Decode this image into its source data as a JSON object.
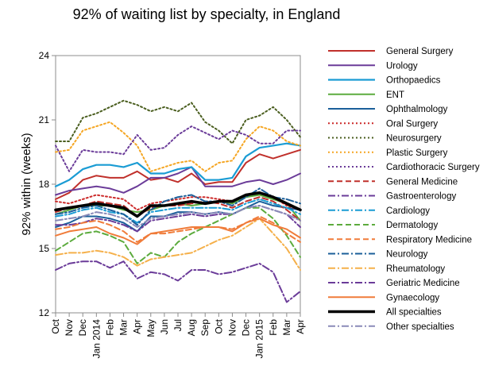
{
  "chart_data": {
    "type": "line",
    "title": "92% of waiting list by specialty, in England",
    "xlabel": "",
    "ylabel": "92% within (weeks)",
    "ylim": [
      12,
      24
    ],
    "yticks": [
      12,
      15,
      18,
      21,
      24
    ],
    "grid": false,
    "legend_position": "right",
    "categories": [
      "Oct",
      "Nov",
      "Dec",
      "Jan 2014",
      "Feb",
      "Mar",
      "Apr",
      "May",
      "Jun",
      "Jul",
      "Aug",
      "Sep",
      "Oct",
      "Nov",
      "Dec",
      "Jan 2015",
      "Feb",
      "Mar",
      "Apr"
    ],
    "series": [
      {
        "name": "General Surgery",
        "color": "#c0302b",
        "dash": "solid",
        "width": 2,
        "values": [
          17.3,
          17.6,
          18.2,
          18.4,
          18.3,
          18.3,
          18.6,
          18.2,
          18.3,
          18.1,
          18.5,
          18.0,
          18.1,
          18.1,
          19.0,
          19.4,
          19.2,
          19.4,
          19.6
        ]
      },
      {
        "name": "Urology",
        "color": "#6b3c99",
        "dash": "solid",
        "width": 2,
        "values": [
          17.5,
          17.7,
          17.8,
          17.9,
          17.8,
          17.6,
          17.9,
          18.3,
          18.3,
          18.5,
          18.8,
          17.9,
          17.9,
          17.9,
          18.1,
          18.2,
          18.0,
          18.2,
          18.5
        ]
      },
      {
        "name": "Orthopaedics",
        "color": "#1a9cd4",
        "dash": "solid",
        "width": 2.2,
        "values": [
          17.9,
          18.2,
          18.7,
          18.9,
          18.9,
          18.8,
          19.0,
          18.5,
          18.5,
          18.7,
          18.8,
          18.2,
          18.2,
          18.3,
          19.3,
          19.7,
          19.8,
          19.9,
          19.8
        ]
      },
      {
        "name": "ENT",
        "color": "#5cab3d",
        "dash": "solid",
        "width": 2,
        "values": [
          16.6,
          16.8,
          17.0,
          17.0,
          17.0,
          16.8,
          16.7,
          16.8,
          17.0,
          17.1,
          17.0,
          17.1,
          17.2,
          17.1,
          17.4,
          17.5,
          17.3,
          17.1,
          16.3
        ]
      },
      {
        "name": "Ophthalmology",
        "color": "#1b5f9a",
        "dash": "solid",
        "width": 2,
        "values": [
          16.0,
          16.2,
          16.5,
          16.5,
          16.4,
          16.2,
          15.8,
          16.5,
          16.5,
          16.7,
          16.7,
          16.6,
          16.7,
          16.6,
          16.9,
          17.2,
          17.0,
          16.9,
          16.8
        ]
      },
      {
        "name": "Oral Surgery",
        "color": "#cc2a2a",
        "dash": "dot",
        "width": 2,
        "values": [
          17.2,
          17.1,
          17.3,
          17.5,
          17.4,
          17.3,
          16.8,
          17.1,
          17.2,
          17.3,
          17.4,
          17.4,
          17.3,
          17.2,
          17.5,
          17.6,
          17.4,
          17.0,
          16.8
        ]
      },
      {
        "name": "Neurosurgery",
        "color": "#4a5e1f",
        "dash": "dot",
        "width": 2,
        "values": [
          20.0,
          20.0,
          21.1,
          21.3,
          21.6,
          21.9,
          21.7,
          21.4,
          21.6,
          21.4,
          21.8,
          20.9,
          20.5,
          19.9,
          21.0,
          21.2,
          21.6,
          21.0,
          20.2
        ]
      },
      {
        "name": "Plastic Surgery",
        "color": "#f5a623",
        "dash": "dot",
        "width": 2,
        "values": [
          19.5,
          19.6,
          20.5,
          20.7,
          20.9,
          20.4,
          19.8,
          18.6,
          18.8,
          19.0,
          19.1,
          18.6,
          19.0,
          19.1,
          20.1,
          20.7,
          20.5,
          20.0,
          19.8
        ]
      },
      {
        "name": "Cardiothoracic Surgery",
        "color": "#6b3c99",
        "dash": "dot",
        "width": 2,
        "values": [
          19.8,
          18.6,
          19.6,
          19.5,
          19.5,
          19.4,
          20.3,
          19.6,
          19.7,
          20.3,
          20.7,
          20.4,
          20.1,
          20.5,
          20.3,
          19.9,
          19.9,
          20.5,
          20.5
        ]
      },
      {
        "name": "General Medicine",
        "color": "#c0302b",
        "dash": "dash",
        "width": 2,
        "values": [
          16.7,
          16.9,
          17.0,
          17.2,
          17.1,
          17.0,
          16.5,
          16.9,
          17.0,
          17.0,
          17.1,
          17.2,
          17.1,
          16.9,
          17.2,
          17.4,
          17.2,
          16.8,
          16.3
        ]
      },
      {
        "name": "Gastroenterology",
        "color": "#6b3c99",
        "dash": "dashdot",
        "width": 2,
        "values": [
          16.1,
          16.1,
          16.2,
          16.4,
          16.3,
          16.1,
          15.8,
          16.3,
          16.4,
          16.5,
          16.6,
          16.5,
          16.6,
          16.6,
          16.9,
          17.0,
          16.8,
          16.6,
          16.0
        ]
      },
      {
        "name": "Cardiology",
        "color": "#1a9cd4",
        "dash": "dashdot",
        "width": 2,
        "values": [
          16.5,
          16.6,
          16.8,
          16.9,
          16.7,
          16.6,
          16.2,
          16.7,
          16.8,
          16.9,
          16.9,
          16.9,
          16.9,
          16.8,
          17.1,
          17.3,
          17.1,
          16.9,
          16.6
        ]
      },
      {
        "name": "Dermatology",
        "color": "#5cab3d",
        "dash": "dash",
        "width": 2,
        "values": [
          14.9,
          15.3,
          15.7,
          15.8,
          15.6,
          15.3,
          14.3,
          14.8,
          14.6,
          15.3,
          15.7,
          16.0,
          16.3,
          16.6,
          16.9,
          16.9,
          16.4,
          15.6,
          14.6
        ]
      },
      {
        "name": "Respiratory Medicine",
        "color": "#f07c3a",
        "dash": "dash",
        "width": 2,
        "values": [
          15.9,
          16.0,
          16.2,
          16.3,
          16.1,
          15.8,
          15.3,
          15.7,
          15.7,
          15.8,
          15.9,
          16.0,
          16.0,
          15.9,
          16.2,
          16.5,
          16.2,
          15.7,
          15.3
        ]
      },
      {
        "name": "Neurology",
        "color": "#1b5f9a",
        "dash": "dashdot",
        "width": 2,
        "values": [
          16.6,
          16.7,
          16.9,
          17.0,
          16.8,
          16.6,
          16.1,
          16.8,
          17.2,
          17.4,
          17.5,
          17.2,
          17.2,
          17.0,
          17.4,
          17.8,
          17.4,
          17.3,
          17.1
        ]
      },
      {
        "name": "Rheumatology",
        "color": "#f5b04a",
        "dash": "dashdot",
        "width": 2,
        "values": [
          14.7,
          14.8,
          14.8,
          14.9,
          14.8,
          14.6,
          14.2,
          14.5,
          14.6,
          14.7,
          14.8,
          15.1,
          15.4,
          15.6,
          16.0,
          16.4,
          15.7,
          15.0,
          14.0
        ]
      },
      {
        "name": "Geriatric Medicine",
        "color": "#6b3c99",
        "dash": "dashdot",
        "width": 2,
        "values": [
          14.0,
          14.3,
          14.4,
          14.4,
          14.1,
          14.4,
          13.6,
          13.9,
          13.8,
          13.5,
          14.0,
          14.0,
          13.8,
          13.9,
          14.1,
          14.3,
          13.9,
          12.5,
          13.0
        ]
      },
      {
        "name": "Gynaecology",
        "color": "#f07c3a",
        "dash": "solid",
        "width": 2,
        "values": [
          15.6,
          15.8,
          15.9,
          16.0,
          15.7,
          15.5,
          15.2,
          15.7,
          15.8,
          15.9,
          16.0,
          16.0,
          16.0,
          15.8,
          16.2,
          16.4,
          16.1,
          15.9,
          15.5
        ]
      },
      {
        "name": "All specialties",
        "color": "#000000",
        "dash": "solid",
        "width": 3.6,
        "values": [
          16.8,
          16.9,
          17.0,
          17.1,
          17.0,
          16.9,
          16.5,
          17.0,
          17.0,
          17.1,
          17.2,
          17.1,
          17.2,
          17.2,
          17.5,
          17.6,
          17.4,
          17.1,
          16.8
        ]
      },
      {
        "name": "Other specialties",
        "color": "#8a8ab8",
        "dash": "dashdot",
        "width": 2,
        "values": [
          16.3,
          16.4,
          16.5,
          16.7,
          16.6,
          16.4,
          16.0,
          16.4,
          16.5,
          16.6,
          16.7,
          16.6,
          16.7,
          16.6,
          16.9,
          17.0,
          16.8,
          16.6,
          16.3
        ]
      }
    ]
  }
}
